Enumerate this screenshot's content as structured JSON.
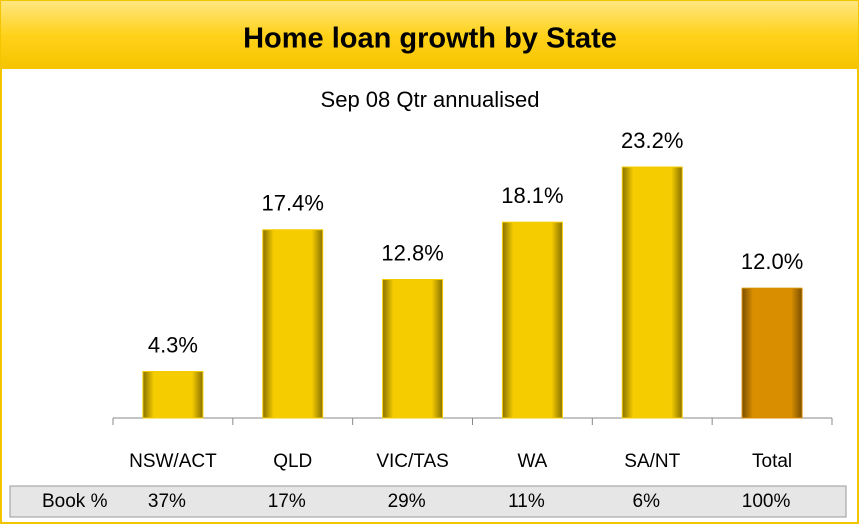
{
  "chart_data": {
    "type": "bar",
    "title": "Home loan growth by State",
    "subtitle": "Sep 08 Qtr annualised",
    "categories": [
      "NSW/ACT",
      "QLD",
      "VIC/TAS",
      "WA",
      "SA/NT",
      "Total"
    ],
    "values": [
      4.3,
      17.4,
      12.8,
      18.1,
      23.2,
      12.0
    ],
    "value_labels": [
      "4.3%",
      "17.4%",
      "12.8%",
      "18.1%",
      "23.2%",
      "12.0%"
    ],
    "colors": [
      "#f5cc00",
      "#f5cc00",
      "#f5cc00",
      "#f5cc00",
      "#f5cc00",
      "#d98e00"
    ],
    "book_row": {
      "label": "Book %",
      "cells": [
        "37%",
        "17%",
        "29%",
        "11%",
        "6%",
        "100%"
      ]
    }
  }
}
